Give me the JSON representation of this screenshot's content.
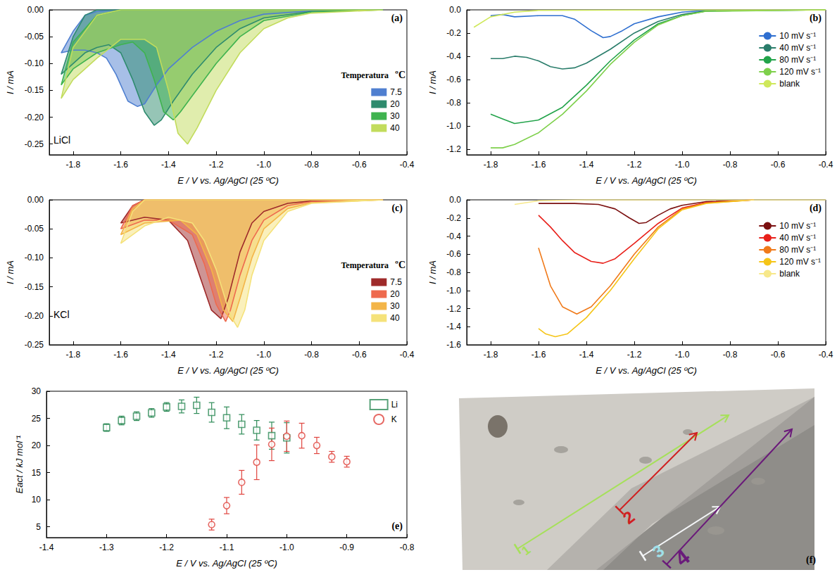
{
  "chart_data": [
    {
      "type": "area",
      "panel": "(a)",
      "annotation": "LiCl",
      "legend_title": "Temperatura",
      "legend_unit": "ºC",
      "x_label": "E / V vs. Ag/AgCl (25 ºC)",
      "y_label": "I / mA",
      "xlim": [
        -1.9,
        -0.4
      ],
      "xticks": [
        -1.8,
        -1.6,
        -1.4,
        -1.2,
        {
          "value": -1,
          "label": "-1.0"
        },
        -0.8,
        -0.6,
        -0.4
      ],
      "ylim": [
        -0.27,
        0
      ],
      "yticks": [
        {
          "value": 0,
          "label": "0.00"
        },
        -0.05,
        {
          "value": -0.1,
          "label": "-0.10"
        },
        -0.15,
        {
          "value": -0.2,
          "label": "-0.20"
        },
        -0.25
      ],
      "grid": false,
      "legend": "right",
      "series": [
        {
          "name": "7.5",
          "color": "#4f7fd0",
          "x": [
            -0.5,
            -0.8,
            -1.0,
            -1.1,
            -1.2,
            -1.3,
            -1.4,
            -1.45,
            -1.5,
            -1.53,
            -1.57,
            -1.62,
            -1.66,
            -1.7,
            -1.75,
            -1.8,
            -1.85,
            -1.8,
            -1.75,
            -1.7,
            -1.6,
            -0.5
          ],
          "values": [
            0,
            -0.002,
            -0.008,
            -0.02,
            -0.04,
            -0.07,
            -0.11,
            -0.14,
            -0.175,
            -0.18,
            -0.17,
            -0.12,
            -0.09,
            -0.08,
            -0.075,
            -0.075,
            -0.08,
            -0.04,
            -0.01,
            -0.003,
            0,
            0
          ]
        },
        {
          "name": "20",
          "color": "#2e8b6e",
          "x": [
            -0.5,
            -0.8,
            -1.0,
            -1.1,
            -1.2,
            -1.3,
            -1.38,
            -1.43,
            -1.46,
            -1.5,
            -1.55,
            -1.6,
            -1.65,
            -1.7,
            -1.75,
            -1.8,
            -1.85,
            -1.8,
            -1.75,
            -1.7,
            -0.5
          ],
          "values": [
            0,
            -0.003,
            -0.015,
            -0.035,
            -0.07,
            -0.12,
            -0.17,
            -0.205,
            -0.215,
            -0.19,
            -0.13,
            -0.08,
            -0.065,
            -0.07,
            -0.08,
            -0.1,
            -0.12,
            -0.05,
            -0.01,
            0,
            0
          ]
        },
        {
          "name": "30",
          "color": "#3fb34f",
          "x": [
            -0.5,
            -0.8,
            -1.0,
            -1.1,
            -1.2,
            -1.3,
            -1.35,
            -1.38,
            -1.42,
            -1.46,
            -1.5,
            -1.55,
            -1.6,
            -1.7,
            -1.8,
            -1.85,
            -1.8,
            -1.7,
            -1.6,
            -0.5
          ],
          "values": [
            0,
            -0.004,
            -0.02,
            -0.05,
            -0.1,
            -0.16,
            -0.19,
            -0.205,
            -0.19,
            -0.13,
            -0.08,
            -0.06,
            -0.065,
            -0.08,
            -0.11,
            -0.14,
            -0.06,
            -0.01,
            0,
            0
          ]
        },
        {
          "name": "40",
          "color": "#c2dc5c",
          "x": [
            -0.5,
            -0.8,
            -0.9,
            -1.0,
            -1.1,
            -1.2,
            -1.28,
            -1.32,
            -1.36,
            -1.4,
            -1.45,
            -1.5,
            -1.6,
            -1.7,
            -1.8,
            -1.85,
            -1.8,
            -1.7,
            -1.6,
            -0.5
          ],
          "values": [
            0,
            -0.006,
            -0.015,
            -0.035,
            -0.08,
            -0.15,
            -0.22,
            -0.25,
            -0.23,
            -0.15,
            -0.07,
            -0.055,
            -0.055,
            -0.09,
            -0.13,
            -0.165,
            -0.07,
            -0.01,
            0,
            0
          ]
        }
      ]
    },
    {
      "type": "line",
      "panel": "(b)",
      "x_label": "E / V vs. Ag/AgCl (25 ºC)",
      "y_label": "I / mA",
      "xlim": [
        -1.9,
        -0.4
      ],
      "xticks": [
        -1.8,
        -1.6,
        -1.4,
        -1.2,
        {
          "value": -1,
          "label": "-1.0"
        },
        -0.8,
        -0.6,
        -0.4
      ],
      "ylim": [
        -1.25,
        0
      ],
      "yticks": [
        {
          "value": 0,
          "label": "0.0"
        },
        -0.2,
        -0.4,
        -0.6,
        -0.8,
        {
          "value": -1,
          "label": "-1.0"
        },
        -1.2
      ],
      "grid": false,
      "legend": "right",
      "series": [
        {
          "name": "10 mV s⁻¹",
          "color": "#2f6fd0",
          "x": [
            -0.4,
            -0.9,
            -1.0,
            -1.1,
            -1.2,
            -1.25,
            -1.3,
            -1.33,
            -1.38,
            -1.45,
            -1.5,
            -1.6,
            -1.7,
            -1.75,
            -1.8
          ],
          "values": [
            0,
            -0.005,
            -0.02,
            -0.06,
            -0.12,
            -0.18,
            -0.23,
            -0.24,
            -0.18,
            -0.08,
            -0.05,
            -0.05,
            -0.06,
            -0.04,
            -0.05
          ]
        },
        {
          "name": "40 mV s⁻¹",
          "color": "#2a7d6b",
          "x": [
            -0.4,
            -0.9,
            -1.0,
            -1.1,
            -1.2,
            -1.3,
            -1.4,
            -1.45,
            -1.5,
            -1.55,
            -1.6,
            -1.65,
            -1.7,
            -1.75,
            -1.8
          ],
          "values": [
            0,
            -0.01,
            -0.04,
            -0.1,
            -0.2,
            -0.34,
            -0.46,
            -0.5,
            -0.51,
            -0.49,
            -0.44,
            -0.41,
            -0.4,
            -0.42,
            -0.42
          ]
        },
        {
          "name": "80 mV s⁻¹",
          "color": "#22a34a",
          "x": [
            -0.4,
            -0.9,
            -1.0,
            -1.1,
            -1.2,
            -1.3,
            -1.4,
            -1.5,
            -1.6,
            -1.7,
            -1.75,
            -1.8
          ],
          "values": [
            0,
            -0.01,
            -0.05,
            -0.12,
            -0.26,
            -0.44,
            -0.65,
            -0.84,
            -0.95,
            -0.98,
            -0.94,
            -0.9
          ]
        },
        {
          "name": "120 mV s⁻¹",
          "color": "#7ed04b",
          "x": [
            -0.4,
            -0.9,
            -1.0,
            -1.1,
            -1.2,
            -1.3,
            -1.4,
            -1.5,
            -1.6,
            -1.7,
            -1.75,
            -1.8
          ],
          "values": [
            0,
            -0.012,
            -0.05,
            -0.13,
            -0.28,
            -0.47,
            -0.7,
            -0.9,
            -1.06,
            -1.16,
            -1.19,
            -1.19
          ]
        },
        {
          "name": "blank",
          "color": "#cfe85a",
          "x": [
            -0.4,
            -1.0,
            -1.6,
            -1.7,
            -1.8,
            -1.87
          ],
          "values": [
            0,
            0,
            -0.005,
            -0.02,
            -0.06,
            -0.15
          ]
        }
      ]
    },
    {
      "type": "area",
      "panel": "(c)",
      "annotation": "KCl",
      "legend_title": "Temperatura",
      "legend_unit": "ºC",
      "x_label": "E / V vs. Ag/AgCl (25 ºC)",
      "y_label": "I / mA",
      "xlim": [
        -1.9,
        -0.4
      ],
      "xticks": [
        -1.8,
        -1.6,
        -1.4,
        -1.2,
        {
          "value": -1,
          "label": "-1.0"
        },
        -0.8,
        -0.6,
        -0.4
      ],
      "ylim": [
        -0.25,
        0
      ],
      "yticks": [
        {
          "value": 0,
          "label": "0.00"
        },
        -0.05,
        {
          "value": -0.1,
          "label": "-0.10"
        },
        -0.15,
        {
          "value": -0.2,
          "label": "-0.20"
        },
        -0.25
      ],
      "grid": false,
      "legend": "right",
      "series": [
        {
          "name": "7.5",
          "color": "#9e2a2a",
          "x": [
            -0.5,
            -0.8,
            -0.9,
            -1.0,
            -1.05,
            -1.1,
            -1.15,
            -1.18,
            -1.22,
            -1.27,
            -1.32,
            -1.4,
            -1.5,
            -1.6,
            -1.55,
            -1.5,
            -0.5
          ],
          "values": [
            0,
            -0.002,
            -0.006,
            -0.02,
            -0.04,
            -0.09,
            -0.17,
            -0.205,
            -0.19,
            -0.13,
            -0.07,
            -0.035,
            -0.03,
            -0.04,
            -0.01,
            0,
            0
          ]
        },
        {
          "name": "20",
          "color": "#ee6a4e",
          "x": [
            -0.5,
            -0.8,
            -0.9,
            -1.0,
            -1.05,
            -1.1,
            -1.14,
            -1.16,
            -1.2,
            -1.25,
            -1.3,
            -1.4,
            -1.5,
            -1.6,
            -1.55,
            -1.5,
            -0.5
          ],
          "values": [
            0,
            -0.003,
            -0.01,
            -0.035,
            -0.07,
            -0.13,
            -0.19,
            -0.21,
            -0.18,
            -0.11,
            -0.06,
            -0.035,
            -0.035,
            -0.05,
            -0.01,
            0,
            0
          ]
        },
        {
          "name": "30",
          "color": "#f3b548",
          "x": [
            -0.5,
            -0.8,
            -0.9,
            -1.0,
            -1.05,
            -1.1,
            -1.13,
            -1.17,
            -1.22,
            -1.28,
            -1.35,
            -1.5,
            -1.6,
            -1.55,
            -1.5,
            -0.5
          ],
          "values": [
            0,
            -0.005,
            -0.015,
            -0.05,
            -0.1,
            -0.17,
            -0.21,
            -0.19,
            -0.12,
            -0.06,
            -0.035,
            -0.04,
            -0.06,
            -0.015,
            0,
            0
          ]
        },
        {
          "name": "40",
          "color": "#f5e27a",
          "x": [
            -0.5,
            -0.8,
            -0.9,
            -1.0,
            -1.05,
            -1.08,
            -1.11,
            -1.14,
            -1.2,
            -1.25,
            -1.3,
            -1.4,
            -1.5,
            -1.6,
            -1.55,
            -1.5,
            -0.5
          ],
          "values": [
            0,
            -0.006,
            -0.02,
            -0.07,
            -0.13,
            -0.19,
            -0.22,
            -0.2,
            -0.12,
            -0.07,
            -0.04,
            -0.03,
            -0.045,
            -0.075,
            -0.02,
            0,
            0
          ]
        }
      ]
    },
    {
      "type": "line",
      "panel": "(d)",
      "x_label": "E / V vs. Ag/AgCl (25 ºC)",
      "y_label": "I / mA",
      "xlim": [
        -1.9,
        -0.4
      ],
      "xticks": [
        -1.8,
        -1.6,
        -1.4,
        -1.2,
        {
          "value": -1,
          "label": "-1.0"
        },
        -0.8,
        -0.6,
        -0.4
      ],
      "ylim": [
        -1.6,
        0
      ],
      "yticks": [
        {
          "value": 0,
          "label": "0.0"
        },
        -0.2,
        -0.4,
        -0.6,
        -0.8,
        {
          "value": -1,
          "label": "-1.0"
        },
        -1.2,
        -1.4,
        -1.6
      ],
      "grid": false,
      "legend": "right",
      "series": [
        {
          "name": "10 mV s⁻¹",
          "color": "#7b1010",
          "x": [
            -0.7,
            -0.9,
            -1.0,
            -1.05,
            -1.1,
            -1.15,
            -1.18,
            -1.22,
            -1.28,
            -1.35,
            -1.45,
            -1.6
          ],
          "values": [
            0,
            -0.02,
            -0.06,
            -0.1,
            -0.17,
            -0.25,
            -0.26,
            -0.2,
            -0.1,
            -0.05,
            -0.04,
            -0.04
          ]
        },
        {
          "name": "40 mV s⁻¹",
          "color": "#e8201a",
          "x": [
            -0.7,
            -0.9,
            -1.0,
            -1.1,
            -1.2,
            -1.28,
            -1.33,
            -1.38,
            -1.45,
            -1.5,
            -1.55,
            -1.6
          ],
          "values": [
            0,
            -0.03,
            -0.09,
            -0.26,
            -0.48,
            -0.65,
            -0.7,
            -0.68,
            -0.58,
            -0.45,
            -0.3,
            -0.17
          ]
        },
        {
          "name": "80 mV s⁻¹",
          "color": "#f07a1a",
          "x": [
            -0.7,
            -0.9,
            -1.0,
            -1.1,
            -1.2,
            -1.3,
            -1.38,
            -1.44,
            -1.5,
            -1.55,
            -1.6
          ],
          "values": [
            0,
            -0.035,
            -0.1,
            -0.3,
            -0.6,
            -0.95,
            -1.18,
            -1.26,
            -1.18,
            -0.95,
            -0.53
          ]
        },
        {
          "name": "120 mV s⁻¹",
          "color": "#f5c518",
          "x": [
            -0.7,
            -0.9,
            -1.0,
            -1.1,
            -1.2,
            -1.3,
            -1.4,
            -1.48,
            -1.53,
            -1.57,
            -1.6
          ],
          "values": [
            0,
            -0.04,
            -0.11,
            -0.32,
            -0.65,
            -1.0,
            -1.3,
            -1.48,
            -1.51,
            -1.48,
            -1.42
          ]
        },
        {
          "name": "blank",
          "color": "#f7e88a",
          "x": [
            -0.4,
            -1.4,
            -1.6,
            -1.7
          ],
          "values": [
            0,
            0,
            -0.01,
            -0.05
          ]
        }
      ]
    },
    {
      "type": "scatter",
      "panel": "(e)",
      "x_label": "E / V vs. Ag/AgCl (25 ºC)",
      "y_label": "Eact / kJ mol⁻¹",
      "xlim": [
        -1.4,
        -0.8
      ],
      "xticks": [
        -1.4,
        -1.3,
        -1.2,
        -1.1,
        {
          "value": -1,
          "label": "-1.0"
        },
        -0.9,
        -0.8
      ],
      "ylim": [
        3,
        30
      ],
      "yticks": [
        5,
        10,
        15,
        20,
        25,
        30
      ],
      "grid": false,
      "legend": "upper right",
      "series": [
        {
          "name": "Li",
          "color": "#2e8b57",
          "marker": "square",
          "x": [
            -1.3,
            -1.275,
            -1.25,
            -1.225,
            -1.2,
            -1.175,
            -1.15,
            -1.125,
            -1.1,
            -1.075,
            -1.05,
            -1.025,
            -1.0
          ],
          "values": [
            23.3,
            24.6,
            25.4,
            26,
            27.1,
            27.2,
            27.4,
            26.1,
            25.1,
            23.9,
            22.8,
            21.8,
            21.4
          ],
          "errors": [
            0.7,
            0.8,
            0.8,
            0.8,
            0.8,
            1.2,
            1.5,
            1.8,
            2,
            1.8,
            1.8,
            2.5,
            2.8
          ]
        },
        {
          "name": "K",
          "color": "#e0453f",
          "marker": "circle",
          "x": [
            -1.125,
            -1.1,
            -1.075,
            -1.05,
            -1.025,
            -1.0,
            -0.975,
            -0.95,
            -0.925,
            -0.9
          ],
          "values": [
            5.4,
            8.9,
            13.2,
            16.9,
            20.2,
            21.7,
            21.8,
            20,
            17.9,
            17
          ],
          "errors": [
            1,
            1.5,
            2.2,
            3.2,
            3,
            2.8,
            2.3,
            1.5,
            1,
            1
          ]
        }
      ]
    }
  ],
  "photo": {
    "panel": "(f)",
    "labels": [
      "1",
      "2",
      "3",
      "4"
    ]
  }
}
